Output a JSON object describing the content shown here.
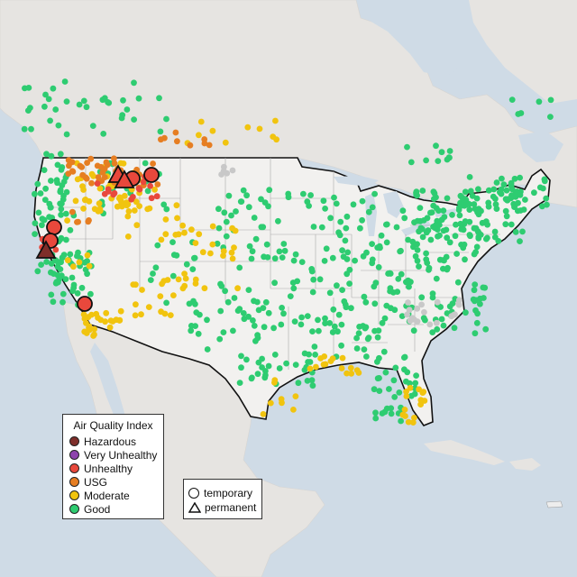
{
  "legend": {
    "title": "Air Quality Index",
    "categories": [
      {
        "label": "Hazardous",
        "color": "#7e2e2a"
      },
      {
        "label": "Very Unhealthy",
        "color": "#8e44ad"
      },
      {
        "label": "Unhealthy",
        "color": "#e8483c"
      },
      {
        "label": "USG",
        "color": "#e67e22"
      },
      {
        "label": "Moderate",
        "color": "#f1c40f"
      },
      {
        "label": "Good",
        "color": "#2ecc71"
      }
    ]
  },
  "monitor_types": [
    {
      "label": "temporary",
      "icon": "circle-icon"
    },
    {
      "label": "permanent",
      "icon": "triangle-icon"
    }
  ],
  "colors": {
    "water": "#cfdbe6",
    "land": "#e8e6e3",
    "us_land": "#f1f0ee",
    "no_data": "#c8c8c8"
  }
}
